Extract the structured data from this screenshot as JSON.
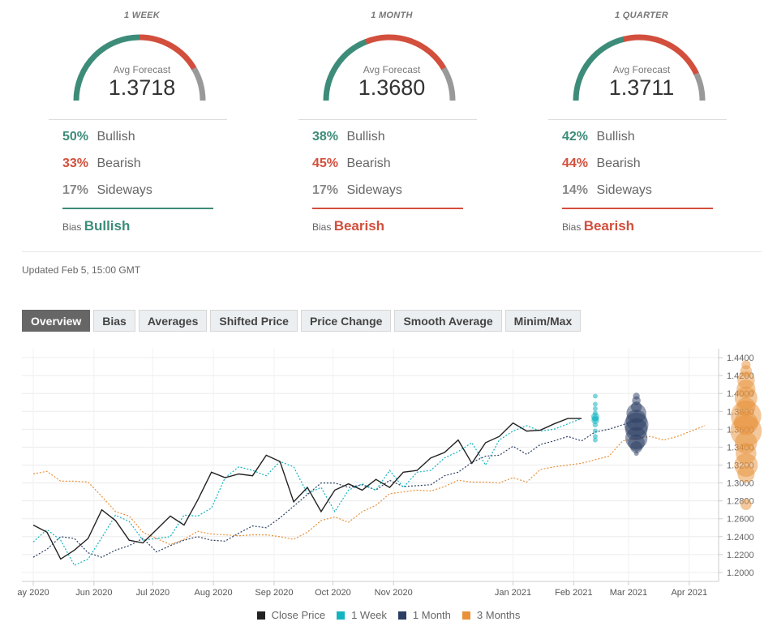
{
  "panels": [
    {
      "title": "1 WEEK",
      "avg_label": "Avg Forecast",
      "avg_value": "1.3718",
      "bullish_pct": "50%",
      "bullish_label": "Bullish",
      "bearish_pct": "33%",
      "bearish_label": "Bearish",
      "sideways_pct": "17%",
      "sideways_label": "Sideways",
      "bias_label": "Bias",
      "bias_value": "Bullish",
      "bias_color": "#3d8c79",
      "bullish": 50,
      "bearish": 33,
      "sideways": 17
    },
    {
      "title": "1 MONTH",
      "avg_label": "Avg Forecast",
      "avg_value": "1.3680",
      "bullish_pct": "38%",
      "bullish_label": "Bullish",
      "bearish_pct": "45%",
      "bearish_label": "Bearish",
      "sideways_pct": "17%",
      "sideways_label": "Sideways",
      "bias_label": "Bias",
      "bias_value": "Bearish",
      "bias_color": "#d24f3d",
      "bullish": 38,
      "bearish": 45,
      "sideways": 17
    },
    {
      "title": "1 QUARTER",
      "avg_label": "Avg Forecast",
      "avg_value": "1.3711",
      "bullish_pct": "42%",
      "bullish_label": "Bullish",
      "bearish_pct": "44%",
      "bearish_label": "Bearish",
      "sideways_pct": "14%",
      "sideways_label": "Sideways",
      "bias_label": "Bias",
      "bias_value": "Bearish",
      "bias_color": "#d24f3d",
      "bullish": 42,
      "bearish": 44,
      "sideways": 14
    }
  ],
  "colors": {
    "bullish": "#3d8c79",
    "bearish": "#d24f3d",
    "sideways": "#999999"
  },
  "updated": "Updated Feb 5, 15:00 GMT",
  "tabs": [
    "Overview",
    "Bias",
    "Averages",
    "Shifted Price",
    "Price Change",
    "Smooth Average",
    "Minim/Max"
  ],
  "active_tab": 0,
  "chart_data": {
    "type": "line",
    "x_ticks": [
      {
        "label": "ay 2020",
        "x": "2020-05-01"
      },
      {
        "label": "Jun 2020",
        "x": "2020-06-01"
      },
      {
        "label": "Jul 2020",
        "x": "2020-07-01"
      },
      {
        "label": "Aug 2020",
        "x": "2020-08-01"
      },
      {
        "label": "Sep 2020",
        "x": "2020-09-01"
      },
      {
        "label": "Oct 2020",
        "x": "2020-10-01"
      },
      {
        "label": "Nov 2020",
        "x": "2020-11-01"
      },
      {
        "label": "Jan 2021",
        "x": "2021-01-01"
      },
      {
        "label": "Feb 2021",
        "x": "2021-02-01"
      },
      {
        "label": "Mar 2021",
        "x": "2021-03-01"
      },
      {
        "label": "Apr 2021",
        "x": "2021-04-01"
      }
    ],
    "xlim": [
      "2020-05-01",
      "2021-04-16"
    ],
    "y_ticks": [
      "1.2000",
      "1.2200",
      "1.2400",
      "1.2600",
      "1.2800",
      "1.3000",
      "1.3200",
      "1.3400",
      "1.3600",
      "1.3800",
      "1.4000",
      "1.4200",
      "1.4400"
    ],
    "ylim": [
      1.19,
      1.45
    ],
    "series": [
      {
        "name": "Close Price",
        "color": "#222222",
        "dash": false,
        "x": [
          "2020-05-01",
          "2020-05-08",
          "2020-05-15",
          "2020-05-22",
          "2020-05-29",
          "2020-06-05",
          "2020-06-12",
          "2020-06-19",
          "2020-06-26",
          "2020-07-03",
          "2020-07-10",
          "2020-07-17",
          "2020-07-24",
          "2020-07-31",
          "2020-08-07",
          "2020-08-14",
          "2020-08-21",
          "2020-08-28",
          "2020-09-04",
          "2020-09-11",
          "2020-09-18",
          "2020-09-25",
          "2020-10-02",
          "2020-10-09",
          "2020-10-16",
          "2020-10-23",
          "2020-10-30",
          "2020-11-06",
          "2020-11-13",
          "2020-11-20",
          "2020-11-27",
          "2020-12-04",
          "2020-12-11",
          "2020-12-18",
          "2020-12-25",
          "2021-01-01",
          "2021-01-08",
          "2021-01-15",
          "2021-01-22",
          "2021-01-29",
          "2021-02-05"
        ],
        "y": [
          1.253,
          1.245,
          1.215,
          1.225,
          1.238,
          1.27,
          1.258,
          1.236,
          1.233,
          1.248,
          1.263,
          1.253,
          1.281,
          1.312,
          1.306,
          1.31,
          1.308,
          1.331,
          1.324,
          1.279,
          1.295,
          1.268,
          1.292,
          1.299,
          1.292,
          1.304,
          1.295,
          1.312,
          1.314,
          1.328,
          1.334,
          1.348,
          1.322,
          1.345,
          1.352,
          1.367,
          1.358,
          1.359,
          1.366,
          1.372,
          1.372
        ]
      },
      {
        "name": "1 Week",
        "color": "#13b4c0",
        "dash": true,
        "x": [
          "2020-05-01",
          "2020-05-08",
          "2020-05-15",
          "2020-05-22",
          "2020-05-29",
          "2020-06-05",
          "2020-06-12",
          "2020-06-19",
          "2020-06-26",
          "2020-07-03",
          "2020-07-10",
          "2020-07-17",
          "2020-07-24",
          "2020-07-31",
          "2020-08-07",
          "2020-08-14",
          "2020-08-21",
          "2020-08-28",
          "2020-09-04",
          "2020-09-11",
          "2020-09-18",
          "2020-09-25",
          "2020-10-02",
          "2020-10-09",
          "2020-10-16",
          "2020-10-23",
          "2020-10-30",
          "2020-11-06",
          "2020-11-13",
          "2020-11-20",
          "2020-11-27",
          "2020-12-04",
          "2020-12-11",
          "2020-12-18",
          "2020-12-25",
          "2021-01-01",
          "2021-01-08",
          "2021-01-15",
          "2021-01-22",
          "2021-01-29",
          "2021-02-05"
        ],
        "y": [
          1.234,
          1.248,
          1.236,
          1.208,
          1.215,
          1.239,
          1.264,
          1.257,
          1.236,
          1.238,
          1.24,
          1.264,
          1.263,
          1.272,
          1.306,
          1.318,
          1.314,
          1.308,
          1.324,
          1.318,
          1.288,
          1.295,
          1.268,
          1.292,
          1.299,
          1.292,
          1.314,
          1.295,
          1.312,
          1.314,
          1.328,
          1.335,
          1.345,
          1.32,
          1.348,
          1.358,
          1.364,
          1.358,
          1.36,
          1.366,
          1.372
        ]
      },
      {
        "name": "1 Month",
        "color": "#2b3e63",
        "dash": true,
        "x": [
          "2020-05-01",
          "2020-05-08",
          "2020-05-15",
          "2020-05-22",
          "2020-05-29",
          "2020-06-05",
          "2020-06-12",
          "2020-06-19",
          "2020-06-26",
          "2020-07-03",
          "2020-07-10",
          "2020-07-17",
          "2020-07-24",
          "2020-07-31",
          "2020-08-07",
          "2020-08-14",
          "2020-08-21",
          "2020-08-28",
          "2020-09-04",
          "2020-09-11",
          "2020-09-18",
          "2020-09-25",
          "2020-10-02",
          "2020-10-09",
          "2020-10-16",
          "2020-10-23",
          "2020-10-30",
          "2020-11-06",
          "2020-11-13",
          "2020-11-20",
          "2020-11-27",
          "2020-12-04",
          "2020-12-11",
          "2020-12-18",
          "2020-12-25",
          "2021-01-01",
          "2021-01-08",
          "2021-01-15",
          "2021-01-22",
          "2021-01-29",
          "2021-02-05",
          "2021-02-12",
          "2021-02-19",
          "2021-02-26",
          "2021-03-05"
        ],
        "y": [
          1.217,
          1.226,
          1.24,
          1.238,
          1.222,
          1.217,
          1.225,
          1.23,
          1.238,
          1.223,
          1.23,
          1.236,
          1.24,
          1.236,
          1.235,
          1.244,
          1.252,
          1.25,
          1.261,
          1.274,
          1.287,
          1.3,
          1.3,
          1.295,
          1.298,
          1.292,
          1.303,
          1.296,
          1.297,
          1.298,
          1.308,
          1.312,
          1.323,
          1.33,
          1.331,
          1.341,
          1.332,
          1.343,
          1.347,
          1.352,
          1.347,
          1.357,
          1.36,
          1.365,
          1.37
        ]
      },
      {
        "name": "3 Months",
        "color": "#e8913a",
        "dash": true,
        "x": [
          "2020-05-01",
          "2020-05-08",
          "2020-05-15",
          "2020-05-22",
          "2020-05-29",
          "2020-06-05",
          "2020-06-12",
          "2020-06-19",
          "2020-06-26",
          "2020-07-03",
          "2020-07-10",
          "2020-07-17",
          "2020-07-24",
          "2020-07-31",
          "2020-08-07",
          "2020-08-14",
          "2020-08-21",
          "2020-08-28",
          "2020-09-04",
          "2020-09-11",
          "2020-09-18",
          "2020-09-25",
          "2020-10-02",
          "2020-10-09",
          "2020-10-16",
          "2020-10-23",
          "2020-10-30",
          "2020-11-06",
          "2020-11-13",
          "2020-11-20",
          "2020-11-27",
          "2020-12-04",
          "2020-12-11",
          "2020-12-18",
          "2020-12-25",
          "2021-01-01",
          "2021-01-08",
          "2021-01-15",
          "2021-01-22",
          "2021-01-29",
          "2021-02-05",
          "2021-02-12",
          "2021-02-19",
          "2021-02-26",
          "2021-03-05",
          "2021-03-12",
          "2021-03-19",
          "2021-03-26",
          "2021-04-02",
          "2021-04-09"
        ],
        "y": [
          1.31,
          1.313,
          1.302,
          1.302,
          1.301,
          1.285,
          1.268,
          1.263,
          1.245,
          1.238,
          1.231,
          1.237,
          1.246,
          1.243,
          1.242,
          1.241,
          1.242,
          1.242,
          1.24,
          1.237,
          1.245,
          1.258,
          1.262,
          1.256,
          1.268,
          1.275,
          1.288,
          1.29,
          1.292,
          1.291,
          1.296,
          1.303,
          1.301,
          1.301,
          1.3,
          1.306,
          1.301,
          1.315,
          1.318,
          1.32,
          1.322,
          1.326,
          1.33,
          1.347,
          1.35,
          1.352,
          1.348,
          1.352,
          1.358,
          1.364
        ]
      }
    ],
    "forecast_bubbles": [
      {
        "series": "1 Week",
        "color": "#13b4c0",
        "x": "2021-02-12",
        "values": [
          1.397,
          1.388,
          1.383,
          1.378,
          1.374,
          1.372,
          1.37,
          1.365,
          1.358,
          1.352,
          1.348
        ]
      },
      {
        "series": "1 Month",
        "color": "#2b3e63",
        "x": "2021-03-05",
        "values": [
          1.397,
          1.392,
          1.385,
          1.378,
          1.37,
          1.365,
          1.36,
          1.35,
          1.345,
          1.34,
          1.333
        ]
      },
      {
        "series": "3 Months",
        "color": "#e8913a",
        "x": "2021-04-30",
        "values": [
          1.432,
          1.425,
          1.415,
          1.405,
          1.395,
          1.385,
          1.375,
          1.367,
          1.358,
          1.345,
          1.333,
          1.32,
          1.31,
          1.276
        ]
      }
    ],
    "legend": [
      "Close Price",
      "1 Week",
      "1 Month",
      "3 Months"
    ]
  }
}
